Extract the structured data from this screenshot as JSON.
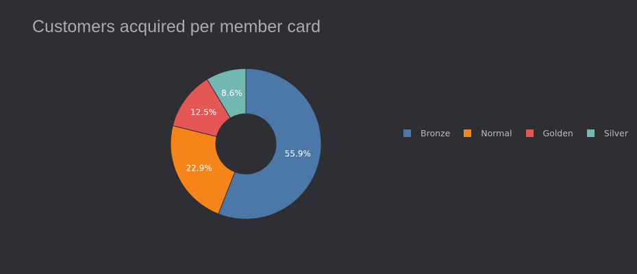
{
  "chart_data": {
    "type": "pie",
    "title": "Customers acquired per member card",
    "hole": true,
    "legend_placement": "right",
    "slices": [
      {
        "label": "Bronze",
        "value": 55.9,
        "display": "55.9%",
        "color": "#4c78a8"
      },
      {
        "label": "Normal",
        "value": 22.9,
        "display": "22.9%",
        "color": "#f58518"
      },
      {
        "label": "Golden",
        "value": 12.5,
        "display": "12.5%",
        "color": "#e45756"
      },
      {
        "label": "Silver",
        "value": 8.6,
        "display": "8.6%",
        "color": "#72b7b2"
      }
    ]
  },
  "legend": {
    "items": [
      {
        "label": "Bronze",
        "color": "#4c78a8"
      },
      {
        "label": "Normal",
        "color": "#f58518"
      },
      {
        "label": "Golden",
        "color": "#e45756"
      },
      {
        "label": "Silver",
        "color": "#72b7b2"
      }
    ]
  }
}
